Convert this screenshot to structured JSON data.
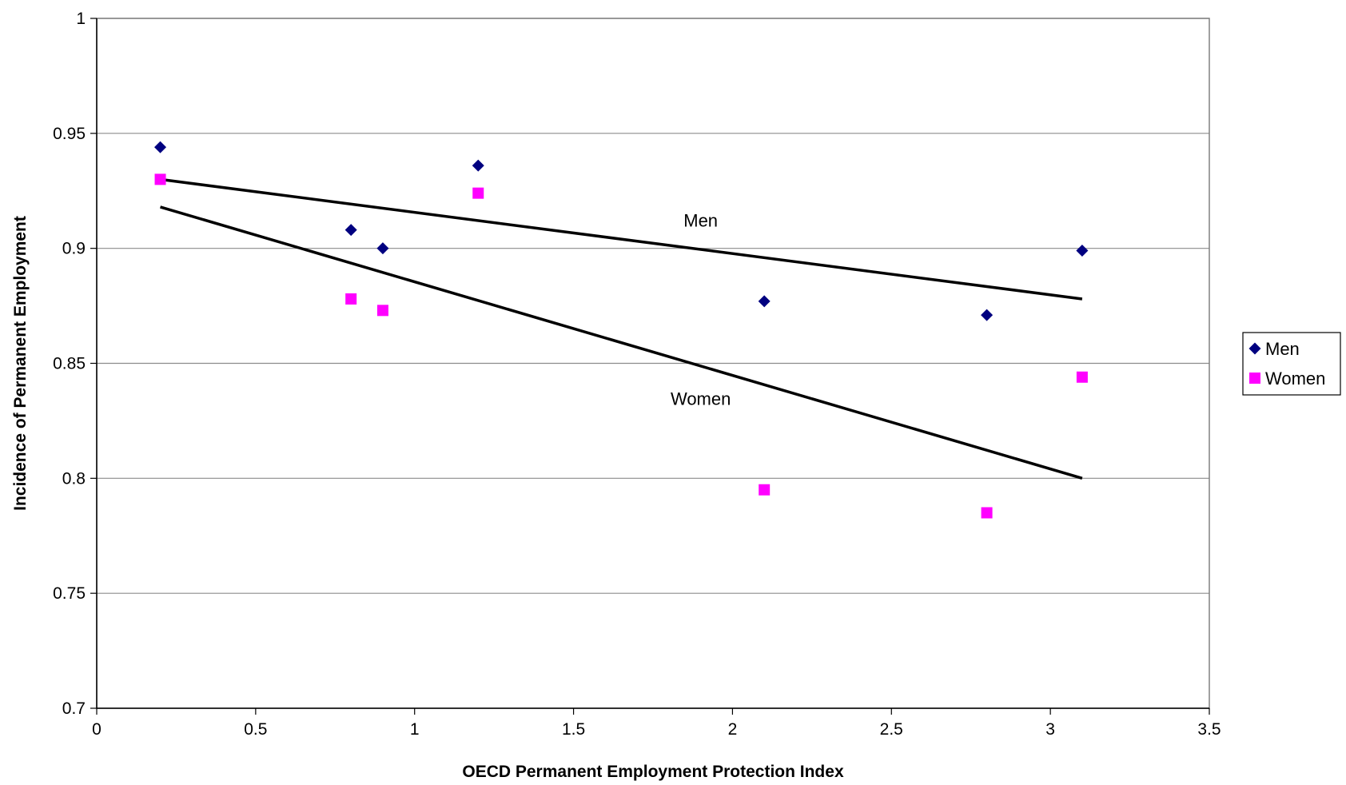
{
  "chart_data": {
    "type": "scatter",
    "title": "",
    "xlabel": "OECD Permanent Employment Protection Index",
    "ylabel": "Incidence of Permanent Employment",
    "xlim": [
      0,
      3.5
    ],
    "ylim": [
      0.7,
      1
    ],
    "x_ticks": [
      "0",
      "0.5",
      "1",
      "1.5",
      "2",
      "2.5",
      "3",
      "3.5"
    ],
    "y_ticks": [
      "0.7",
      "0.75",
      "0.8",
      "0.85",
      "0.9",
      "0.95",
      "1"
    ],
    "grid": "horizontal",
    "legend_position": "right",
    "series": [
      {
        "name": "Men",
        "marker": "diamond",
        "color": "#000080",
        "x": [
          0.2,
          0.8,
          0.9,
          1.2,
          2.1,
          2.8,
          3.1
        ],
        "y": [
          0.944,
          0.908,
          0.9,
          0.936,
          0.877,
          0.871,
          0.899
        ]
      },
      {
        "name": "Women",
        "marker": "square",
        "color": "#FF00FF",
        "x": [
          0.2,
          0.8,
          0.9,
          1.2,
          2.1,
          2.8,
          3.1
        ],
        "y": [
          0.93,
          0.878,
          0.873,
          0.924,
          0.795,
          0.785,
          0.844
        ]
      }
    ],
    "trendlines": [
      {
        "series": "Men",
        "label": "Men",
        "x": [
          0.2,
          3.1
        ],
        "y": [
          0.93,
          0.878
        ],
        "color": "#000000"
      },
      {
        "series": "Women",
        "label": "Women",
        "x": [
          0.2,
          3.1
        ],
        "y": [
          0.918,
          0.8
        ],
        "color": "#000000"
      }
    ],
    "annotations": [
      {
        "text": "Men",
        "x": 1.9,
        "y": 0.9095
      },
      {
        "text": "Women",
        "x": 1.9,
        "y": 0.832
      }
    ]
  }
}
